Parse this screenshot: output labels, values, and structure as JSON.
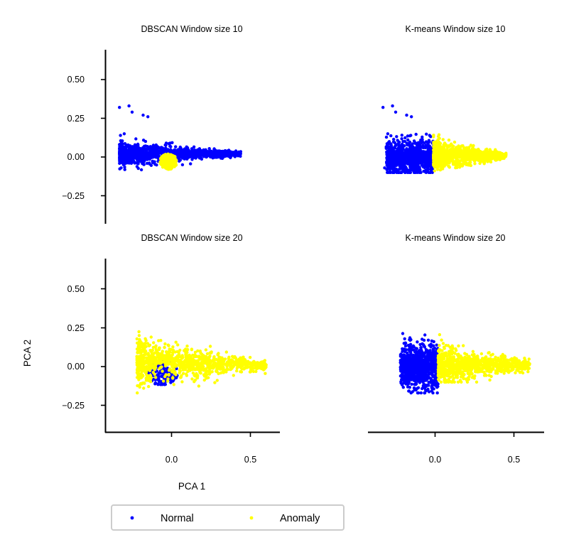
{
  "colors": {
    "normal": "#0000ff",
    "anomaly": "#ffff00",
    "axis": "#000000"
  },
  "axes": {
    "xlabel": "PCA 1",
    "ylabel": "PCA 2"
  },
  "legend": {
    "placement": "below",
    "items": [
      "Normal",
      "Anomaly"
    ]
  },
  "chart_data": [
    {
      "type": "scatter",
      "title": "DBSCAN Window size 10",
      "xlim": [
        -0.42,
        0.68
      ],
      "ylim": [
        -0.43,
        0.69
      ],
      "xticks": [],
      "yticks": [
        "0.50",
        "0.25",
        "0.00",
        "−0.25"
      ],
      "normal_cloud": {
        "apex_x": -0.33,
        "tip_x": 0.44,
        "upper_edge": 0.17,
        "lower_edge": -0.1,
        "center_y": 0.02
      },
      "normal_outliers": [
        [
          -0.33,
          0.32
        ],
        [
          -0.27,
          0.33
        ],
        [
          -0.25,
          0.29
        ],
        [
          -0.18,
          0.27
        ],
        [
          -0.15,
          0.26
        ],
        [
          -0.3,
          0.15
        ],
        [
          -0.32,
          -0.07
        ]
      ],
      "anomaly_blob": {
        "center": [
          -0.02,
          -0.03
        ],
        "rx": 0.055,
        "ry": 0.05
      }
    },
    {
      "type": "scatter",
      "title": "K-means Window size 10",
      "xlim": [
        -0.42,
        0.68
      ],
      "ylim": [
        -0.43,
        0.69
      ],
      "xticks": [],
      "yticks": [],
      "normal_region": {
        "x_min": -0.31,
        "x_max": -0.01,
        "upper_edge": 0.19,
        "lower_edge": -0.1
      },
      "normal_outliers": [
        [
          -0.33,
          0.32
        ],
        [
          -0.27,
          0.33
        ],
        [
          -0.25,
          0.29
        ],
        [
          -0.18,
          0.27
        ],
        [
          -0.15,
          0.26
        ],
        [
          -0.3,
          0.15
        ],
        [
          -0.32,
          -0.07
        ]
      ],
      "anomaly_region": {
        "x_min": -0.01,
        "x_max": 0.45,
        "upper_edge": 0.17,
        "lower_edge": -0.09
      }
    },
    {
      "type": "scatter",
      "title": "DBSCAN Window size 20",
      "xlim": [
        -0.42,
        0.68
      ],
      "ylim": [
        -0.43,
        0.69
      ],
      "xticks": [],
      "yticks": [
        "0.50",
        "0.25",
        "0.00",
        "−0.25"
      ],
      "anomaly_cloud": {
        "x_min": -0.22,
        "x_max": 0.6,
        "upper_edge": 0.24,
        "lower_edge": -0.17
      },
      "normal_cluster": {
        "center": [
          -0.06,
          -0.04
        ],
        "rx": 0.1,
        "ry": 0.08
      }
    },
    {
      "type": "scatter",
      "title": "K-means Window size 20",
      "xlim": [
        -0.42,
        0.68
      ],
      "ylim": [
        -0.43,
        0.69
      ],
      "xticks": [
        "0.0",
        "0.5"
      ],
      "yticks": [],
      "normal_region": {
        "x_min": -0.22,
        "x_max": 0.02,
        "upper_edge": 0.24,
        "lower_edge": -0.17
      },
      "anomaly_region": {
        "x_min": 0.02,
        "x_max": 0.6,
        "upper_edge": 0.22,
        "lower_edge": -0.1
      }
    }
  ],
  "shared_xticks": [
    "0.0",
    "0.5"
  ]
}
